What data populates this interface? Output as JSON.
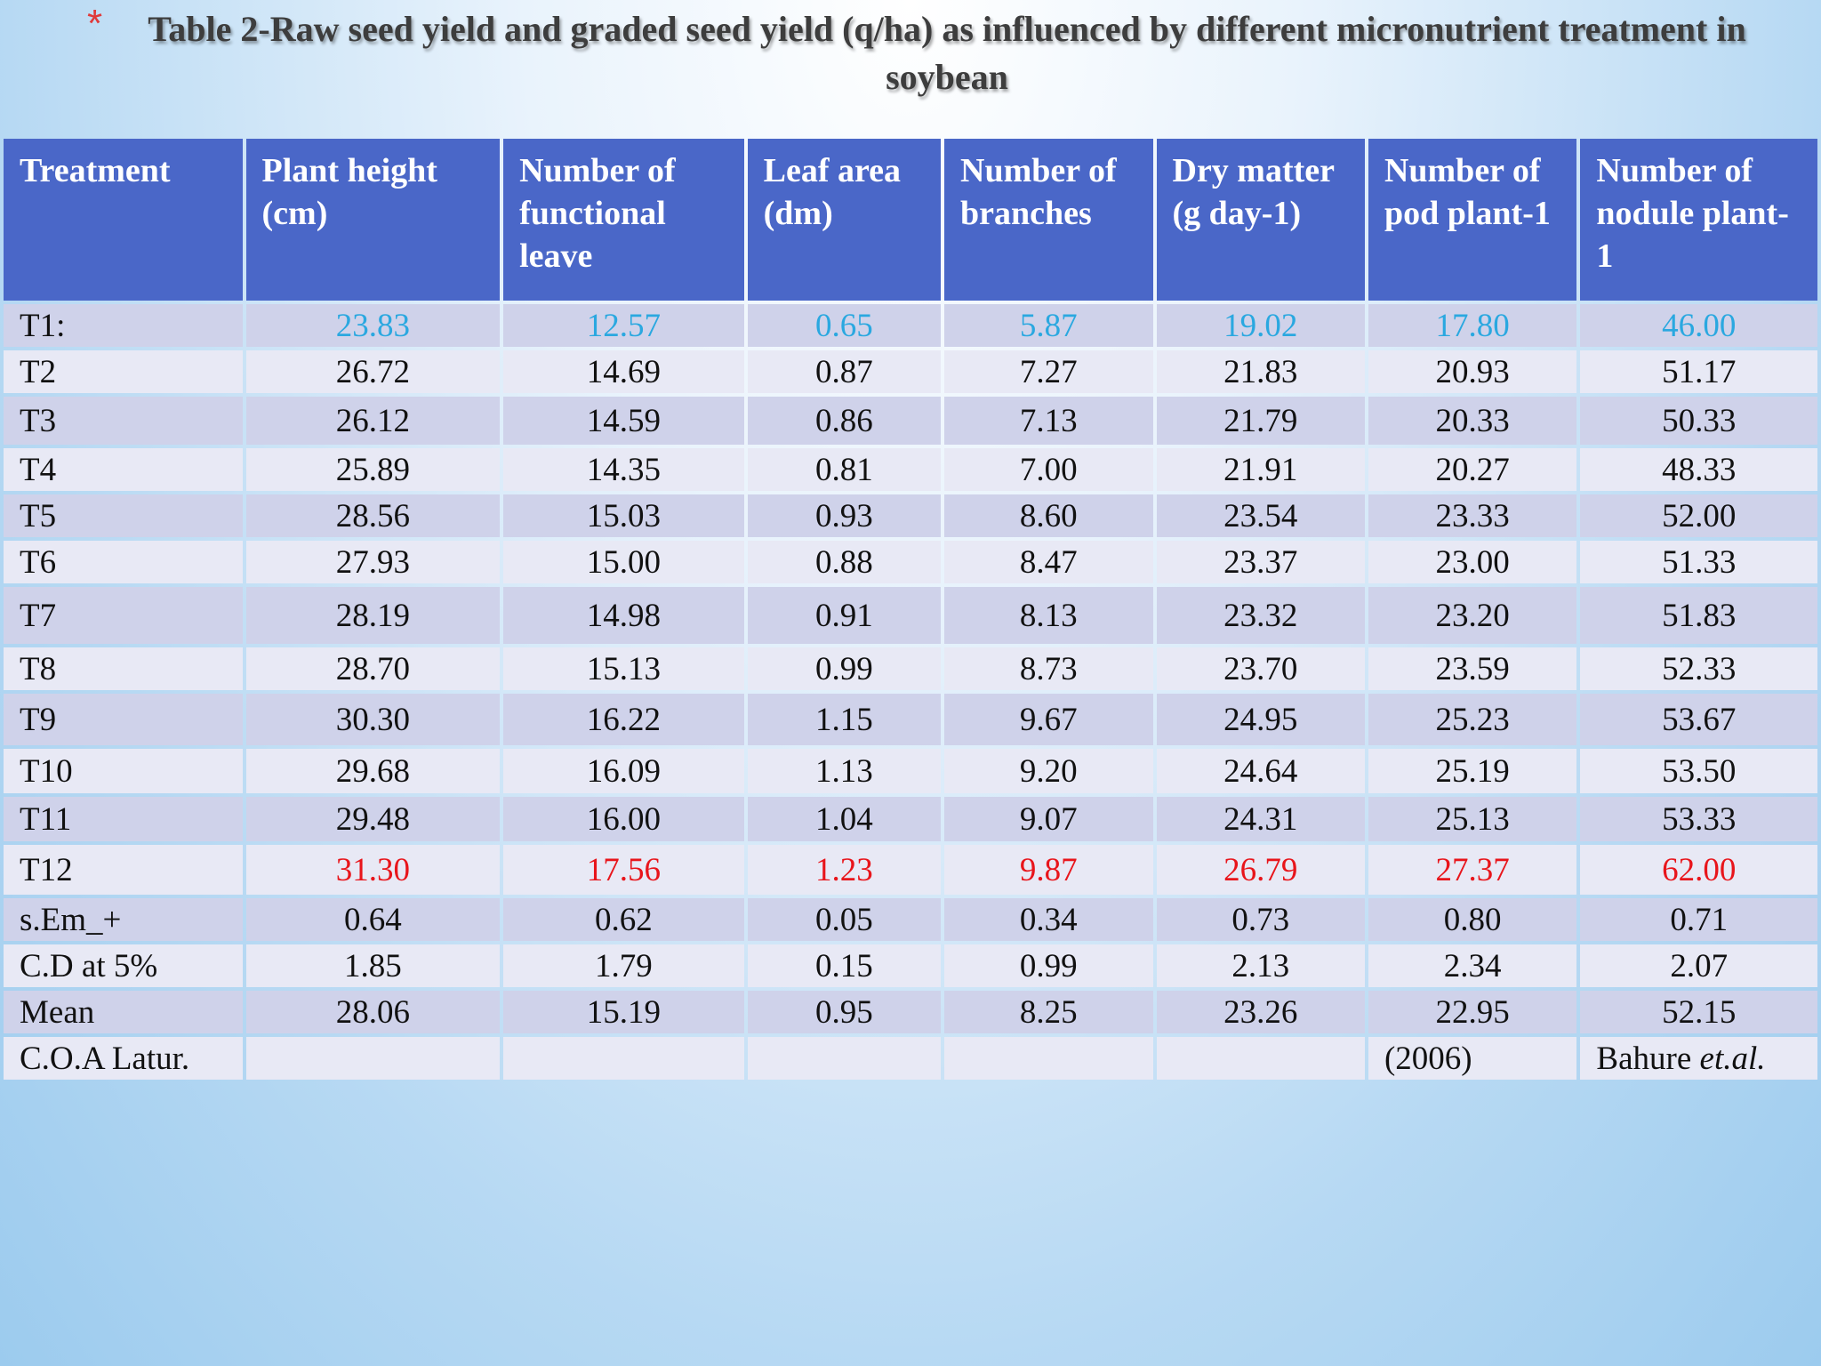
{
  "title": "Table 2-Raw seed yield and graded seed yield (q/ha) as influenced by different micronutrient treatment in soybean",
  "headers": [
    "Treatment",
    "Plant height (cm)",
    "Number of functional leave",
    "Leaf area (dm)",
    "Number of branches",
    "Dry matter (g day-1)",
    "Number of pod plant-1",
    "Number of nodule plant-1"
  ],
  "rows": [
    {
      "treatment": "T1:",
      "values": [
        "23.83",
        "12.57",
        "0.65",
        "5.87",
        "19.02",
        "17.80",
        "46.00"
      ]
    },
    {
      "treatment": "T2",
      "values": [
        "26.72",
        "14.69",
        "0.87",
        "7.27",
        "21.83",
        "20.93",
        "51.17"
      ]
    },
    {
      "treatment": "T3",
      "values": [
        "26.12",
        "14.59",
        "0.86",
        "7.13",
        "21.79",
        "20.33",
        "50.33"
      ]
    },
    {
      "treatment": "T4",
      "values": [
        "25.89",
        "14.35",
        "0.81",
        "7.00",
        "21.91",
        "20.27",
        "48.33"
      ]
    },
    {
      "treatment": "T5",
      "values": [
        "28.56",
        "15.03",
        "0.93",
        "8.60",
        "23.54",
        "23.33",
        "52.00"
      ]
    },
    {
      "treatment": "T6",
      "values": [
        "27.93",
        "15.00",
        "0.88",
        "8.47",
        "23.37",
        "23.00",
        "51.33"
      ]
    },
    {
      "treatment": "T7",
      "values": [
        "28.19",
        "14.98",
        "0.91",
        "8.13",
        "23.32",
        "23.20",
        "51.83"
      ]
    },
    {
      "treatment": "T8",
      "values": [
        "28.70",
        "15.13",
        "0.99",
        "8.73",
        "23.70",
        "23.59",
        "52.33"
      ]
    },
    {
      "treatment": "T9",
      "values": [
        "30.30",
        "16.22",
        "1.15",
        "9.67",
        "24.95",
        "25.23",
        "53.67"
      ]
    },
    {
      "treatment": "T10",
      "values": [
        "29.68",
        "16.09",
        "1.13",
        "9.20",
        "24.64",
        "25.19",
        "53.50"
      ]
    },
    {
      "treatment": "T11",
      "values": [
        "29.48",
        "16.00",
        "1.04",
        "9.07",
        "24.31",
        "25.13",
        "53.33"
      ]
    },
    {
      "treatment": "T12",
      "values": [
        "31.30",
        "17.56",
        "1.23",
        "9.87",
        "26.79",
        "27.37",
        "62.00"
      ]
    },
    {
      "treatment": "s.Em_+",
      "values": [
        "0.64",
        "0.62",
        "0.05",
        "0.34",
        "0.73",
        "0.80",
        "0.71"
      ]
    },
    {
      "treatment": "C.D at 5%",
      "values": [
        "1.85",
        "1.79",
        "0.15",
        "0.99",
        "2.13",
        "2.34",
        "2.07"
      ]
    },
    {
      "treatment": "Mean",
      "values": [
        "28.06",
        "15.19",
        "0.95",
        "8.25",
        "23.26",
        "22.95",
        "52.15"
      ]
    }
  ],
  "footer": {
    "label": "C.O.A  Latur.",
    "year": "(2006)",
    "author": "Bahure",
    "author_suffix": "et.al."
  },
  "colors": {
    "header_bg": "#4a67c8",
    "row_dark": "#cfd2ea",
    "row_light": "#e8e9f5",
    "lowest_value": "#2aa8e0",
    "highest_value": "#e8151b"
  }
}
